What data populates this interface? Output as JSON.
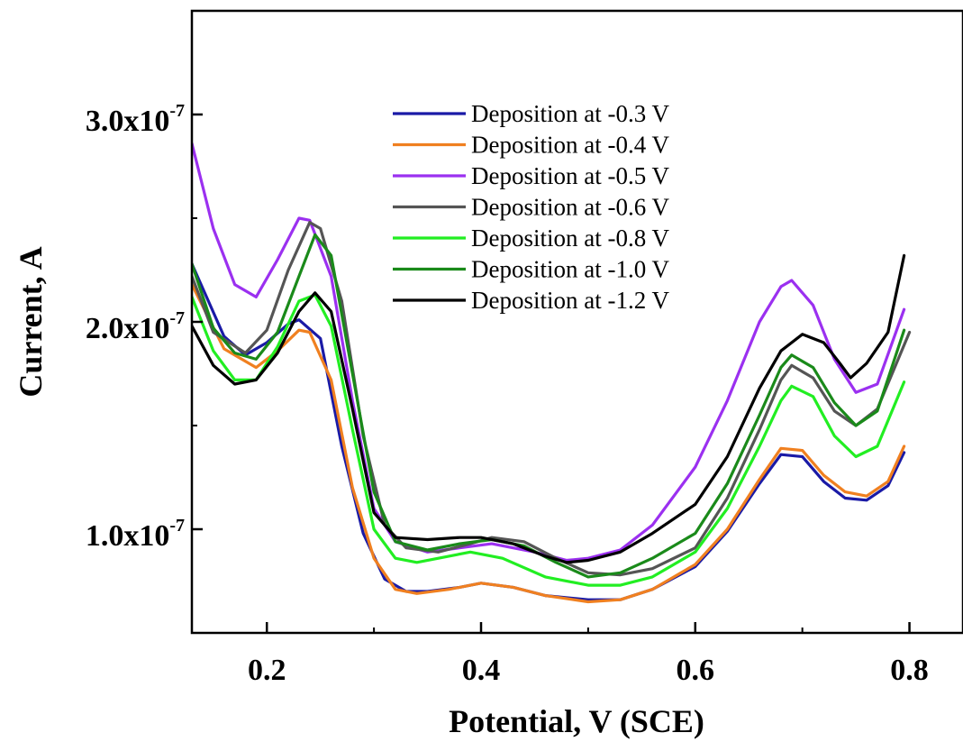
{
  "chart_data": {
    "type": "line",
    "title": "",
    "xlabel": "Potential, V (SCE)",
    "ylabel": "Current, A",
    "xlim": [
      0.13,
      0.85
    ],
    "ylim": [
      5e-08,
      3.5e-07
    ],
    "grid": false,
    "legend_position": "top-center",
    "x_ticks": [
      {
        "value": 0.2,
        "label": "0.2"
      },
      {
        "value": 0.4,
        "label": "0.4"
      },
      {
        "value": 0.6,
        "label": "0.6"
      },
      {
        "value": 0.8,
        "label": "0.8"
      }
    ],
    "y_ticks": [
      {
        "value": 1e-07,
        "base": "1.0x10",
        "exp": "-7"
      },
      {
        "value": 2e-07,
        "base": "2.0x10",
        "exp": "-7"
      },
      {
        "value": 3e-07,
        "base": "3.0x10",
        "exp": "-7"
      }
    ],
    "series": [
      {
        "name": "Deposition at -0.3 V",
        "color": "#1a1aa6",
        "points": [
          [
            0.13,
            2.28e-07
          ],
          [
            0.16,
            1.93e-07
          ],
          [
            0.18,
            1.84e-07
          ],
          [
            0.2,
            1.9e-07
          ],
          [
            0.22,
            1.99e-07
          ],
          [
            0.23,
            2.01e-07
          ],
          [
            0.25,
            1.92e-07
          ],
          [
            0.27,
            1.4e-07
          ],
          [
            0.29,
            9.8e-08
          ],
          [
            0.31,
            7.6e-08
          ],
          [
            0.33,
            7e-08
          ],
          [
            0.35,
            7e-08
          ],
          [
            0.38,
            7.2e-08
          ],
          [
            0.4,
            7.4e-08
          ],
          [
            0.43,
            7.2e-08
          ],
          [
            0.46,
            6.8e-08
          ],
          [
            0.5,
            6.6e-08
          ],
          [
            0.53,
            6.6e-08
          ],
          [
            0.56,
            7.1e-08
          ],
          [
            0.6,
            8.2e-08
          ],
          [
            0.63,
            9.9e-08
          ],
          [
            0.66,
            1.22e-07
          ],
          [
            0.68,
            1.36e-07
          ],
          [
            0.7,
            1.35e-07
          ],
          [
            0.72,
            1.23e-07
          ],
          [
            0.74,
            1.15e-07
          ],
          [
            0.76,
            1.14e-07
          ],
          [
            0.78,
            1.21e-07
          ],
          [
            0.795,
            1.37e-07
          ]
        ]
      },
      {
        "name": "Deposition at -0.4 V",
        "color": "#f08020",
        "points": [
          [
            0.13,
            2.18e-07
          ],
          [
            0.16,
            1.87e-07
          ],
          [
            0.19,
            1.78e-07
          ],
          [
            0.21,
            1.86e-07
          ],
          [
            0.23,
            1.96e-07
          ],
          [
            0.24,
            1.95e-07
          ],
          [
            0.26,
            1.72e-07
          ],
          [
            0.28,
            1.2e-07
          ],
          [
            0.3,
            8.6e-08
          ],
          [
            0.32,
            7.1e-08
          ],
          [
            0.34,
            6.9e-08
          ],
          [
            0.37,
            7.1e-08
          ],
          [
            0.4,
            7.4e-08
          ],
          [
            0.43,
            7.2e-08
          ],
          [
            0.46,
            6.8e-08
          ],
          [
            0.5,
            6.5e-08
          ],
          [
            0.53,
            6.6e-08
          ],
          [
            0.56,
            7.1e-08
          ],
          [
            0.6,
            8.3e-08
          ],
          [
            0.63,
            1e-07
          ],
          [
            0.66,
            1.24e-07
          ],
          [
            0.68,
            1.39e-07
          ],
          [
            0.7,
            1.38e-07
          ],
          [
            0.72,
            1.26e-07
          ],
          [
            0.74,
            1.18e-07
          ],
          [
            0.76,
            1.16e-07
          ],
          [
            0.78,
            1.23e-07
          ],
          [
            0.795,
            1.4e-07
          ]
        ]
      },
      {
        "name": "Deposition at -0.5 V",
        "color": "#9b30f0",
        "points": [
          [
            0.13,
            2.86e-07
          ],
          [
            0.15,
            2.45e-07
          ],
          [
            0.17,
            2.18e-07
          ],
          [
            0.19,
            2.12e-07
          ],
          [
            0.21,
            2.3e-07
          ],
          [
            0.23,
            2.5e-07
          ],
          [
            0.24,
            2.49e-07
          ],
          [
            0.26,
            2.22e-07
          ],
          [
            0.28,
            1.62e-07
          ],
          [
            0.3,
            1.1e-07
          ],
          [
            0.32,
            9.4e-08
          ],
          [
            0.35,
            8.9e-08
          ],
          [
            0.38,
            9.1e-08
          ],
          [
            0.41,
            9.3e-08
          ],
          [
            0.45,
            8.9e-08
          ],
          [
            0.48,
            8.5e-08
          ],
          [
            0.5,
            8.6e-08
          ],
          [
            0.53,
            9e-08
          ],
          [
            0.56,
            1.02e-07
          ],
          [
            0.6,
            1.3e-07
          ],
          [
            0.63,
            1.62e-07
          ],
          [
            0.66,
            2e-07
          ],
          [
            0.68,
            2.17e-07
          ],
          [
            0.69,
            2.2e-07
          ],
          [
            0.71,
            2.08e-07
          ],
          [
            0.73,
            1.82e-07
          ],
          [
            0.75,
            1.66e-07
          ],
          [
            0.77,
            1.7e-07
          ],
          [
            0.795,
            2.06e-07
          ]
        ]
      },
      {
        "name": "Deposition at -0.6 V",
        "color": "#555555",
        "points": [
          [
            0.13,
            2.22e-07
          ],
          [
            0.15,
            1.95e-07
          ],
          [
            0.18,
            1.85e-07
          ],
          [
            0.2,
            1.96e-07
          ],
          [
            0.22,
            2.25e-07
          ],
          [
            0.24,
            2.48e-07
          ],
          [
            0.25,
            2.45e-07
          ],
          [
            0.27,
            2.1e-07
          ],
          [
            0.29,
            1.45e-07
          ],
          [
            0.31,
            1.02e-07
          ],
          [
            0.33,
            9.1e-08
          ],
          [
            0.36,
            8.9e-08
          ],
          [
            0.39,
            9.3e-08
          ],
          [
            0.41,
            9.6e-08
          ],
          [
            0.44,
            9.4e-08
          ],
          [
            0.47,
            8.6e-08
          ],
          [
            0.5,
            7.9e-08
          ],
          [
            0.53,
            7.8e-08
          ],
          [
            0.56,
            8.1e-08
          ],
          [
            0.6,
            9.1e-08
          ],
          [
            0.63,
            1.15e-07
          ],
          [
            0.66,
            1.48e-07
          ],
          [
            0.68,
            1.72e-07
          ],
          [
            0.69,
            1.79e-07
          ],
          [
            0.71,
            1.73e-07
          ],
          [
            0.73,
            1.57e-07
          ],
          [
            0.75,
            1.5e-07
          ],
          [
            0.77,
            1.58e-07
          ],
          [
            0.8,
            1.95e-07
          ]
        ]
      },
      {
        "name": "Deposition at -0.8 V",
        "color": "#22ee22",
        "points": [
          [
            0.13,
            2.12e-07
          ],
          [
            0.15,
            1.86e-07
          ],
          [
            0.17,
            1.72e-07
          ],
          [
            0.19,
            1.72e-07
          ],
          [
            0.21,
            1.88e-07
          ],
          [
            0.23,
            2.1e-07
          ],
          [
            0.245,
            2.13e-07
          ],
          [
            0.26,
            1.98e-07
          ],
          [
            0.28,
            1.48e-07
          ],
          [
            0.3,
            1e-07
          ],
          [
            0.32,
            8.6e-08
          ],
          [
            0.34,
            8.4e-08
          ],
          [
            0.37,
            8.7e-08
          ],
          [
            0.39,
            8.9e-08
          ],
          [
            0.42,
            8.6e-08
          ],
          [
            0.46,
            7.7e-08
          ],
          [
            0.5,
            7.3e-08
          ],
          [
            0.53,
            7.3e-08
          ],
          [
            0.56,
            7.7e-08
          ],
          [
            0.6,
            8.9e-08
          ],
          [
            0.63,
            1.1e-07
          ],
          [
            0.66,
            1.4e-07
          ],
          [
            0.68,
            1.62e-07
          ],
          [
            0.69,
            1.69e-07
          ],
          [
            0.71,
            1.64e-07
          ],
          [
            0.73,
            1.45e-07
          ],
          [
            0.75,
            1.35e-07
          ],
          [
            0.77,
            1.4e-07
          ],
          [
            0.795,
            1.71e-07
          ]
        ]
      },
      {
        "name": "Deposition at -1.0 V",
        "color": "#1a8a1a",
        "points": [
          [
            0.13,
            2.28e-07
          ],
          [
            0.15,
            1.97e-07
          ],
          [
            0.17,
            1.85e-07
          ],
          [
            0.19,
            1.82e-07
          ],
          [
            0.21,
            1.95e-07
          ],
          [
            0.23,
            2.22e-07
          ],
          [
            0.245,
            2.42e-07
          ],
          [
            0.26,
            2.32e-07
          ],
          [
            0.28,
            1.75e-07
          ],
          [
            0.3,
            1.18e-07
          ],
          [
            0.32,
            9.4e-08
          ],
          [
            0.35,
            9e-08
          ],
          [
            0.38,
            9.3e-08
          ],
          [
            0.41,
            9.5e-08
          ],
          [
            0.44,
            9.2e-08
          ],
          [
            0.47,
            8.4e-08
          ],
          [
            0.5,
            7.7e-08
          ],
          [
            0.53,
            7.9e-08
          ],
          [
            0.56,
            8.6e-08
          ],
          [
            0.6,
            9.8e-08
          ],
          [
            0.63,
            1.22e-07
          ],
          [
            0.66,
            1.55e-07
          ],
          [
            0.68,
            1.78e-07
          ],
          [
            0.69,
            1.84e-07
          ],
          [
            0.71,
            1.78e-07
          ],
          [
            0.73,
            1.61e-07
          ],
          [
            0.75,
            1.5e-07
          ],
          [
            0.77,
            1.57e-07
          ],
          [
            0.795,
            1.96e-07
          ]
        ]
      },
      {
        "name": "Deposition at -1.2 V",
        "color": "#000000",
        "points": [
          [
            0.13,
            1.98e-07
          ],
          [
            0.15,
            1.79e-07
          ],
          [
            0.17,
            1.7e-07
          ],
          [
            0.19,
            1.72e-07
          ],
          [
            0.21,
            1.85e-07
          ],
          [
            0.23,
            2.05e-07
          ],
          [
            0.245,
            2.14e-07
          ],
          [
            0.26,
            2.05e-07
          ],
          [
            0.28,
            1.58e-07
          ],
          [
            0.3,
            1.08e-07
          ],
          [
            0.32,
            9.6e-08
          ],
          [
            0.35,
            9.5e-08
          ],
          [
            0.38,
            9.6e-08
          ],
          [
            0.4,
            9.6e-08
          ],
          [
            0.43,
            9.3e-08
          ],
          [
            0.46,
            8.7e-08
          ],
          [
            0.48,
            8.4e-08
          ],
          [
            0.5,
            8.5e-08
          ],
          [
            0.53,
            8.9e-08
          ],
          [
            0.56,
            9.8e-08
          ],
          [
            0.6,
            1.12e-07
          ],
          [
            0.63,
            1.35e-07
          ],
          [
            0.66,
            1.68e-07
          ],
          [
            0.68,
            1.86e-07
          ],
          [
            0.7,
            1.94e-07
          ],
          [
            0.72,
            1.9e-07
          ],
          [
            0.735,
            1.8e-07
          ],
          [
            0.745,
            1.73e-07
          ],
          [
            0.76,
            1.8e-07
          ],
          [
            0.78,
            1.95e-07
          ],
          [
            0.795,
            2.32e-07
          ]
        ]
      }
    ]
  }
}
